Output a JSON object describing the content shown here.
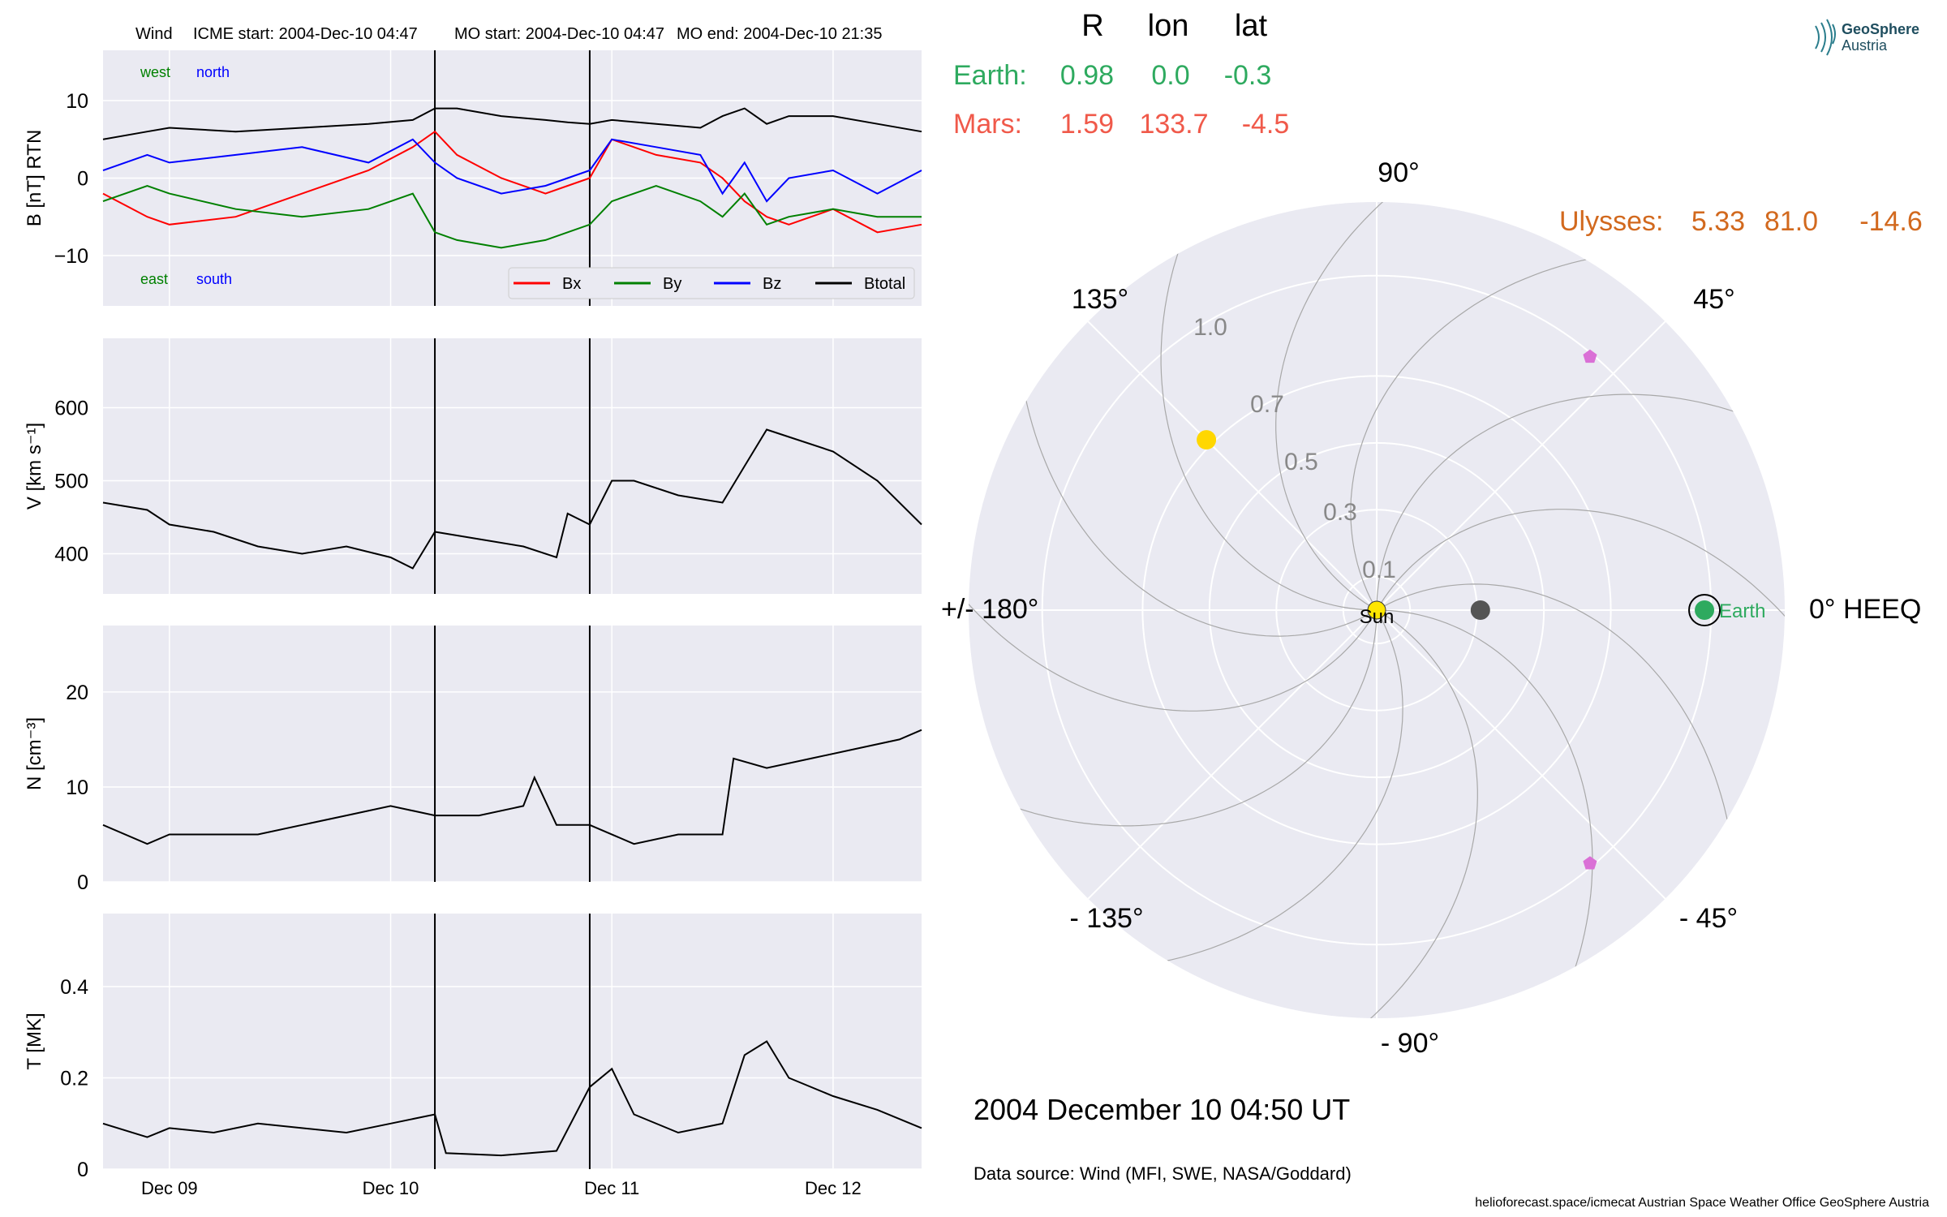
{
  "header": {
    "spacecraft": "Wind",
    "icme_start": "ICME start: 2004-Dec-10 04:47",
    "mo_start": "MO start: 2004-Dec-10 04:47",
    "mo_end": "MO end: 2004-Dec-10 21:35"
  },
  "logo": {
    "line1": "GeoSphere",
    "line2": "Austria"
  },
  "positions_table": {
    "headers": [
      "R",
      "lon",
      "lat"
    ],
    "rows": [
      {
        "name": "Earth:",
        "R": "0.98",
        "lon": "0.0",
        "lat": "-0.3",
        "color": "#2eaa5f"
      },
      {
        "name": "Mars:",
        "R": "1.59",
        "lon": "133.7",
        "lat": "-4.5",
        "color": "#f0594a"
      },
      {
        "name": "Ulysses:",
        "R": "5.33",
        "lon": "81.0",
        "lat": "-14.6",
        "color": "#d2691e"
      }
    ]
  },
  "timestamp": "2004 December 10  04:50 UT",
  "data_source": "Data source: Wind (MFI, SWE, NASA/Goddard)",
  "footer": "helioforecast.space/icmecat   Austrian Space Weather Office   GeoSphere Austria",
  "chart_data": [
    {
      "type": "line",
      "panel": "magnetic_field",
      "ylabel": "B [nT] RTN",
      "ylim": [
        -16.5,
        16.5
      ],
      "yticks": [
        -10,
        0,
        10
      ],
      "annotations": {
        "top_left": "west",
        "top_right": "north",
        "bottom_left": "east",
        "bottom_right": "south"
      },
      "legend_placement": "lower-right",
      "series": [
        {
          "name": "Bx",
          "color": "#ff0000",
          "x": [
            8.7,
            8.9,
            9.0,
            9.3,
            9.6,
            9.9,
            10.1,
            10.2,
            10.3,
            10.5,
            10.7,
            10.8,
            10.9,
            11.0,
            11.2,
            11.4,
            11.5,
            11.6,
            11.7,
            11.8,
            12.0,
            12.2,
            12.4
          ],
          "values": [
            -2,
            -5,
            -6,
            -5,
            -2,
            1,
            4,
            6,
            3,
            0,
            -2,
            -1,
            0,
            5,
            3,
            2,
            0,
            -3,
            -5,
            -6,
            -4,
            -7,
            -6
          ]
        },
        {
          "name": "By",
          "color": "#008000",
          "x": [
            8.7,
            8.9,
            9.0,
            9.3,
            9.6,
            9.9,
            10.1,
            10.2,
            10.3,
            10.5,
            10.7,
            10.8,
            10.9,
            11.0,
            11.2,
            11.4,
            11.5,
            11.6,
            11.7,
            11.8,
            12.0,
            12.2,
            12.4
          ],
          "values": [
            -3,
            -1,
            -2,
            -4,
            -5,
            -4,
            -2,
            -7,
            -8,
            -9,
            -8,
            -7,
            -6,
            -3,
            -1,
            -3,
            -5,
            -2,
            -6,
            -5,
            -4,
            -5,
            -5
          ]
        },
        {
          "name": "Bz",
          "color": "#0000ff",
          "x": [
            8.7,
            8.9,
            9.0,
            9.3,
            9.6,
            9.9,
            10.1,
            10.2,
            10.3,
            10.5,
            10.7,
            10.8,
            10.9,
            11.0,
            11.2,
            11.4,
            11.5,
            11.6,
            11.7,
            11.8,
            12.0,
            12.2,
            12.4
          ],
          "values": [
            1,
            3,
            2,
            3,
            4,
            2,
            5,
            2,
            0,
            -2,
            -1,
            0,
            1,
            5,
            4,
            3,
            -2,
            2,
            -3,
            0,
            1,
            -2,
            1
          ]
        },
        {
          "name": "Btotal",
          "color": "#000000",
          "x": [
            8.7,
            8.9,
            9.0,
            9.3,
            9.6,
            9.9,
            10.1,
            10.2,
            10.3,
            10.5,
            10.7,
            10.8,
            10.9,
            11.0,
            11.2,
            11.4,
            11.5,
            11.6,
            11.7,
            11.8,
            12.0,
            12.2,
            12.4
          ],
          "values": [
            5,
            6,
            6.5,
            6,
            6.5,
            7,
            7.5,
            9,
            9,
            8,
            7.5,
            7.2,
            7,
            7.5,
            7,
            6.5,
            8,
            9,
            7,
            8,
            8,
            7,
            6
          ]
        }
      ]
    },
    {
      "type": "line",
      "panel": "speed",
      "ylabel": "V [km s⁻¹]",
      "ylim": [
        345,
        695
      ],
      "yticks": [
        400,
        500,
        600
      ],
      "series": [
        {
          "name": "",
          "color": "#000000",
          "x": [
            8.7,
            8.9,
            9.0,
            9.2,
            9.4,
            9.6,
            9.8,
            10.0,
            10.1,
            10.2,
            10.4,
            10.6,
            10.75,
            10.8,
            10.9,
            11.0,
            11.1,
            11.3,
            11.5,
            11.6,
            11.7,
            11.8,
            12.0,
            12.2,
            12.4
          ],
          "values": [
            470,
            460,
            440,
            430,
            410,
            400,
            410,
            395,
            380,
            430,
            420,
            410,
            395,
            455,
            440,
            500,
            500,
            480,
            470,
            520,
            570,
            560,
            540,
            500,
            440
          ]
        }
      ]
    },
    {
      "type": "line",
      "panel": "density",
      "ylabel": "N [cm⁻³]",
      "ylim": [
        0,
        27
      ],
      "yticks": [
        0,
        10,
        20
      ],
      "series": [
        {
          "name": "",
          "color": "#000000",
          "x": [
            8.7,
            8.9,
            9.0,
            9.2,
            9.4,
            9.6,
            9.8,
            10.0,
            10.2,
            10.4,
            10.6,
            10.65,
            10.75,
            10.9,
            11.1,
            11.3,
            11.5,
            11.55,
            11.7,
            11.9,
            12.1,
            12.3,
            12.4
          ],
          "values": [
            6,
            4,
            5,
            5,
            5,
            6,
            7,
            8,
            7,
            7,
            8,
            11,
            6,
            6,
            4,
            5,
            5,
            13,
            12,
            13,
            14,
            15,
            16
          ]
        }
      ]
    },
    {
      "type": "line",
      "panel": "temperature",
      "ylabel": "T [MK]",
      "ylim": [
        0,
        0.56
      ],
      "yticks": [
        0.0,
        0.2,
        0.4
      ],
      "xticks": [
        "Dec 09",
        "Dec 10",
        "Dec 11",
        "Dec 12"
      ],
      "series": [
        {
          "name": "",
          "color": "#000000",
          "x": [
            8.7,
            8.9,
            9.0,
            9.2,
            9.4,
            9.6,
            9.8,
            10.0,
            10.2,
            10.25,
            10.5,
            10.75,
            10.9,
            11.0,
            11.1,
            11.3,
            11.5,
            11.6,
            11.7,
            11.8,
            12.0,
            12.2,
            12.4
          ],
          "values": [
            0.1,
            0.07,
            0.09,
            0.08,
            0.1,
            0.09,
            0.08,
            0.1,
            0.12,
            0.035,
            0.03,
            0.04,
            0.18,
            0.22,
            0.12,
            0.08,
            0.1,
            0.25,
            0.28,
            0.2,
            0.16,
            0.13,
            0.09
          ]
        }
      ]
    },
    {
      "type": "scatter",
      "panel": "polar_orbit",
      "theta_labels": [
        "0° HEEQ",
        "45°",
        "90°",
        "135°",
        "+/- 180°",
        "- 135°",
        "- 90°",
        "- 45°"
      ],
      "r_ticks": [
        "0.1",
        "0.3",
        "0.5",
        "0.7",
        "1.0"
      ],
      "points": [
        {
          "name": "Sun",
          "r": 0.0,
          "lon": 0.0,
          "color": "#ffe600"
        },
        {
          "name": "Earth",
          "r": 0.98,
          "lon": 0.0,
          "color": "#2eaa5f"
        },
        {
          "name": "",
          "r": 0.31,
          "lon": 0.0,
          "color": "#555555"
        },
        {
          "name": "",
          "r": 0.72,
          "lon": 135.0,
          "color": "#ffd700"
        },
        {
          "name": "",
          "r": 0.99,
          "lon": 49.9,
          "color": "#da70d6"
        },
        {
          "name": "",
          "r": 0.99,
          "lon": -49.9,
          "color": "#da70d6"
        }
      ]
    }
  ]
}
